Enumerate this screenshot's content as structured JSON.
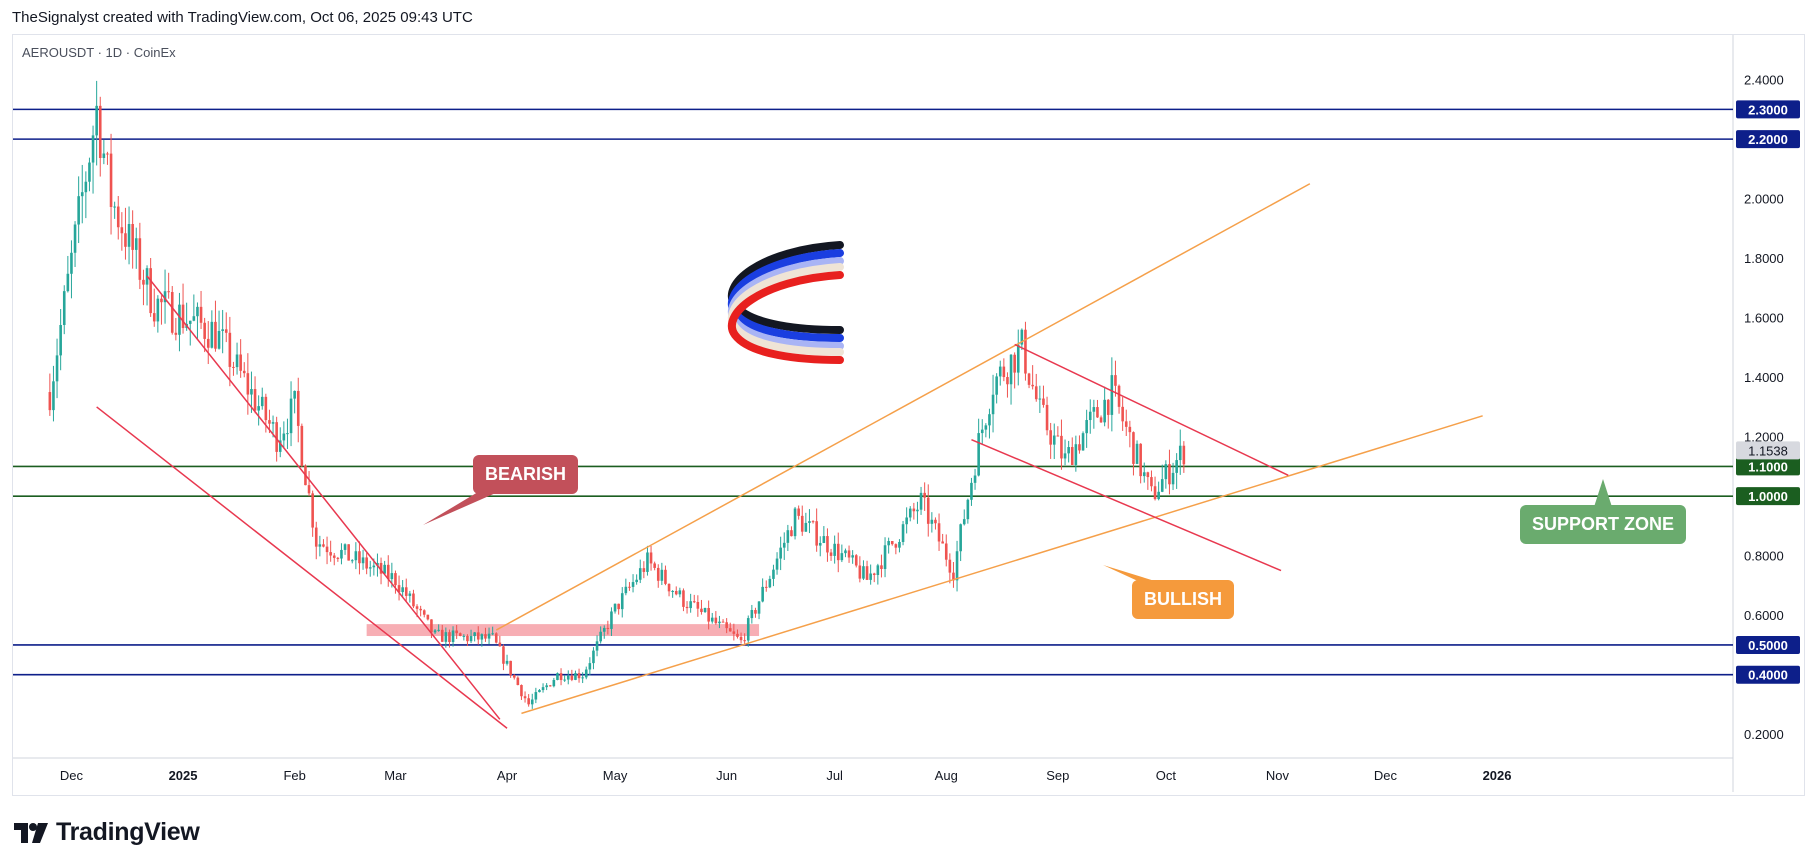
{
  "header": "TheSignalyst created with TradingView.com, Oct 06, 2025 09:43 UTC",
  "symbol_line": "AEROUSDT · 1D · CoinEx",
  "branding": {
    "name": "TradingView"
  },
  "annotations": {
    "bearish": "BEARISH",
    "bullish": "BULLISH",
    "support_zone": "SUPPORT ZONE"
  },
  "colors": {
    "bull": "#26a69a",
    "bear": "#ef5350",
    "blue_level": "#0d1f8a",
    "green_level": "#1b5e20",
    "orange_line": "#f5a04a",
    "red_line": "#e8384f",
    "bearish_tag": "#c2505a",
    "bullish_tag": "#f59a3c",
    "support_tag": "#6aab6e"
  },
  "chart_data": {
    "type": "candlestick",
    "symbol": "AEROUSDT",
    "interval": "1D",
    "exchange": "CoinEx",
    "current_price": "1.1538",
    "x_tick_labels": [
      "Dec",
      "2025",
      "Feb",
      "Mar",
      "Apr",
      "May",
      "Jun",
      "Jul",
      "Aug",
      "Sep",
      "Oct",
      "Nov",
      "Dec",
      "2026"
    ],
    "y_tick_labels": [
      "2.4000",
      "2.2000",
      "2.0000",
      "1.8000",
      "1.6000",
      "1.4000",
      "1.2000",
      "0.8000",
      "0.6000",
      "0.4000",
      "0.2000"
    ],
    "ylim": [
      0.12,
      2.55
    ],
    "horizontal_levels": [
      {
        "value": 2.3,
        "label": "2.3000",
        "kind": "resistance"
      },
      {
        "value": 2.2,
        "label": "2.2000",
        "kind": "resistance"
      },
      {
        "value": 1.1,
        "label": "1.1000",
        "kind": "support"
      },
      {
        "value": 1.0,
        "label": "1.0000",
        "kind": "support"
      },
      {
        "value": 0.5,
        "label": "0.5000",
        "kind": "support"
      },
      {
        "value": 0.4,
        "label": "0.4000",
        "kind": "support"
      }
    ],
    "key_points": [
      {
        "date": "2024-11-25",
        "close": 1.35
      },
      {
        "date": "2024-12-08",
        "close": 2.3
      },
      {
        "date": "2024-12-12",
        "close": 2.0
      },
      {
        "date": "2024-12-24",
        "close": 1.65
      },
      {
        "date": "2025-01-10",
        "close": 1.55
      },
      {
        "date": "2025-01-27",
        "close": 1.2
      },
      {
        "date": "2025-02-01",
        "close": 1.3
      },
      {
        "date": "2025-02-07",
        "close": 0.85
      },
      {
        "date": "2025-03-01",
        "close": 0.72
      },
      {
        "date": "2025-03-12",
        "close": 0.53
      },
      {
        "date": "2025-03-28",
        "close": 0.52
      },
      {
        "date": "2025-04-07",
        "close": 0.3
      },
      {
        "date": "2025-04-15",
        "close": 0.4
      },
      {
        "date": "2025-04-22",
        "close": 0.4
      },
      {
        "date": "2025-05-01",
        "close": 0.62
      },
      {
        "date": "2025-05-10",
        "close": 0.78
      },
      {
        "date": "2025-05-20",
        "close": 0.65
      },
      {
        "date": "2025-06-05",
        "close": 0.51
      },
      {
        "date": "2025-06-20",
        "close": 0.93
      },
      {
        "date": "2025-07-05",
        "close": 0.78
      },
      {
        "date": "2025-07-10",
        "close": 0.72
      },
      {
        "date": "2025-07-25",
        "close": 0.98
      },
      {
        "date": "2025-08-03",
        "close": 0.75
      },
      {
        "date": "2025-08-10",
        "close": 1.18
      },
      {
        "date": "2025-08-14",
        "close": 1.38
      },
      {
        "date": "2025-08-22",
        "close": 1.5
      },
      {
        "date": "2025-08-27",
        "close": 1.28
      },
      {
        "date": "2025-09-03",
        "close": 1.12
      },
      {
        "date": "2025-09-16",
        "close": 1.35
      },
      {
        "date": "2025-09-27",
        "close": 1.0
      },
      {
        "date": "2025-10-06",
        "close": 1.1538
      }
    ]
  }
}
